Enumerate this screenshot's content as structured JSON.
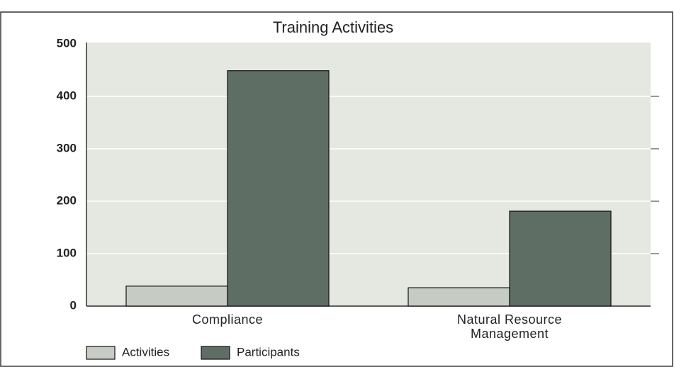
{
  "chart_data": {
    "type": "bar",
    "title": "Training Activities",
    "categories": [
      "Compliance",
      "Natural Resource Management"
    ],
    "series": [
      {
        "name": "Activities",
        "color": "#c6ccc4",
        "values": [
          38,
          35
        ]
      },
      {
        "name": "Participants",
        "color": "#5f6e64",
        "values": [
          449,
          181
        ]
      }
    ],
    "ylim": [
      0,
      500
    ],
    "yticks": [
      0,
      100,
      200,
      300,
      400,
      500
    ],
    "grid": true
  }
}
